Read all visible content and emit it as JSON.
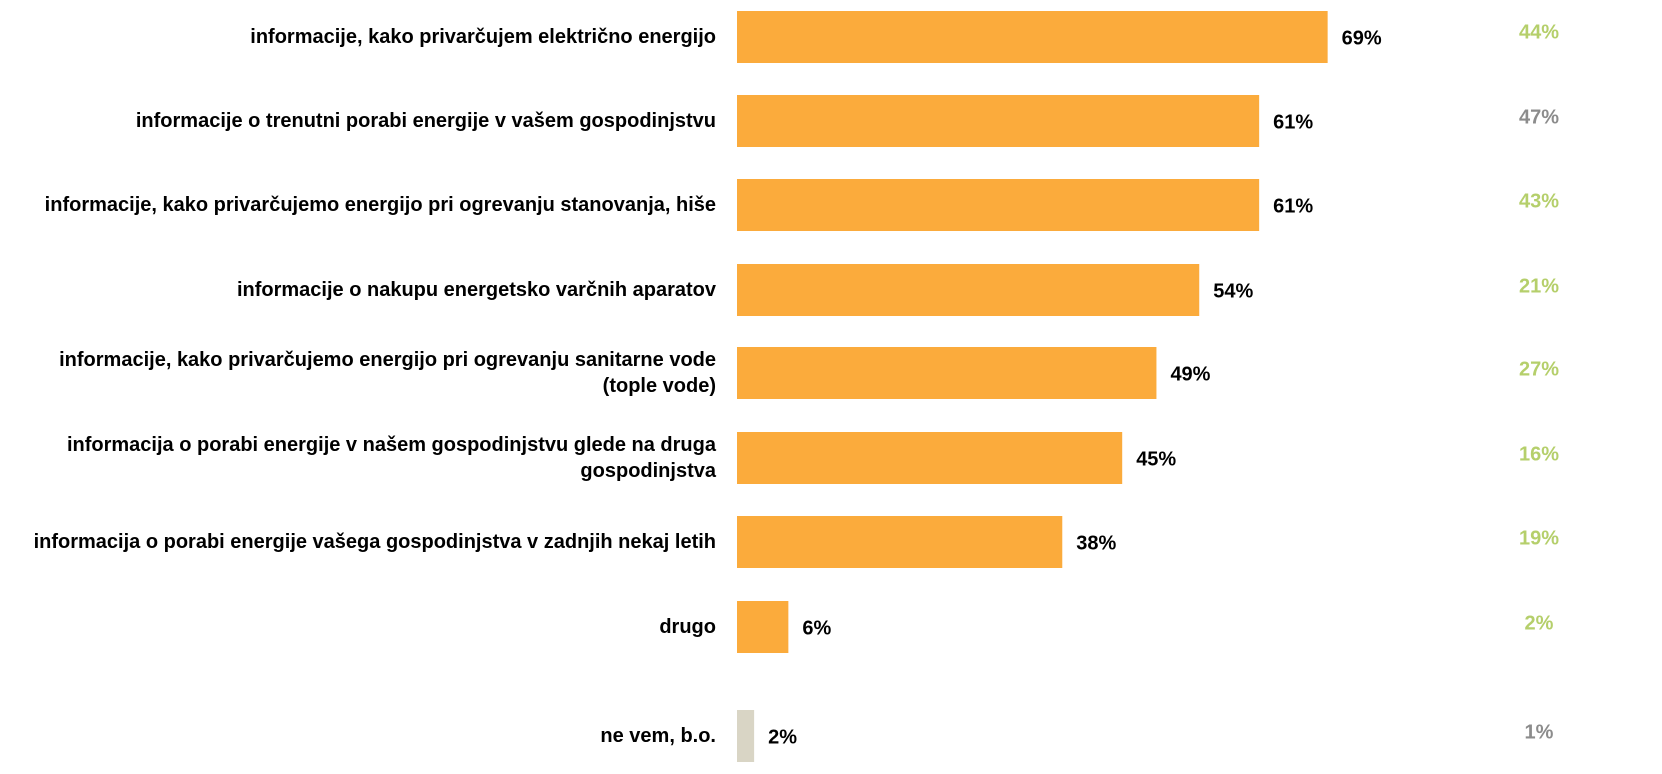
{
  "chart_data": {
    "type": "bar",
    "orientation": "horizontal",
    "categories": [
      "informacije, kako privarčujem električno energijo",
      "informacije o trenutni porabi energije v vašem gospodinjstvu",
      "informacije, kako privarčujemo energijo pri ogrevanju stanovanja, hiše",
      "informacije o nakupu energetsko varčnih aparatov",
      "informacije, kako privarčujemo energijo pri ogrevanju sanitarne vode (tople vode)",
      "informacija o porabi energije v našem gospodinjstvu glede na druga gospodinjstva",
      "informacija o porabi energije vašega gospodinjstva v zadnjih nekaj letih",
      "drugo",
      "ne vem, b.o."
    ],
    "values": [
      69,
      61,
      61,
      54,
      49,
      45,
      38,
      6,
      2
    ],
    "value_labels": [
      "69%",
      "61%",
      "61%",
      "54%",
      "49%",
      "45%",
      "38%",
      "6%",
      "2%"
    ],
    "colors": [
      "#fbab3c",
      "#fbab3c",
      "#fbab3c",
      "#fbab3c",
      "#fbab3c",
      "#fbab3c",
      "#fbab3c",
      "#fbab3c",
      "#d9d5c5"
    ],
    "xlim": [
      0,
      100
    ],
    "comparison": {
      "values": [
        44,
        47,
        43,
        21,
        27,
        16,
        19,
        2,
        1
      ],
      "value_labels": [
        "44%",
        "47%",
        "43%",
        "21%",
        "27%",
        "16%",
        "19%",
        "2%",
        "1%"
      ],
      "colors": [
        "#b5cf6b",
        "#8c8c8c",
        "#b5cf6b",
        "#b5cf6b",
        "#b5cf6b",
        "#b5cf6b",
        "#b5cf6b",
        "#b5cf6b",
        "#8c8c8c"
      ]
    }
  }
}
